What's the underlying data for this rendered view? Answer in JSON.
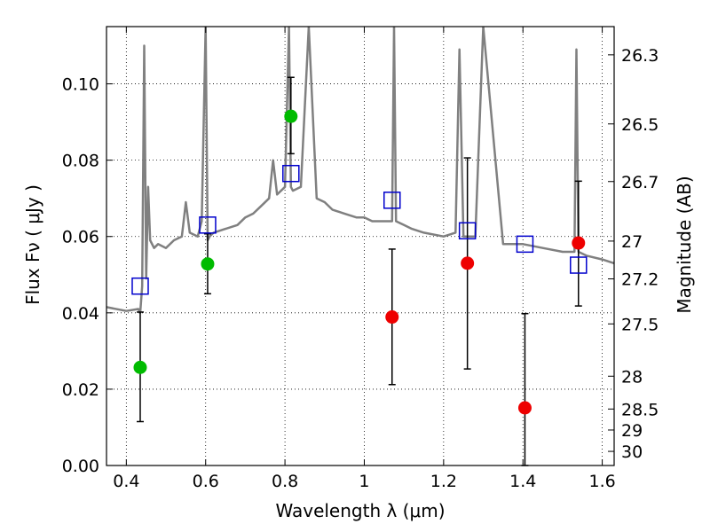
{
  "chart_data": {
    "type": "scatter",
    "xlabel": "Wavelength  λ (μm)",
    "ylabel": "Flux  Fν  ( μJy )",
    "ylabel_right": "Magnitude (AB)",
    "xlim": [
      0.35,
      1.63
    ],
    "ylim": [
      0.0,
      0.115
    ],
    "grid": true,
    "x_ticks": [
      0.4,
      0.6,
      0.8,
      1.0,
      1.2,
      1.4,
      1.6
    ],
    "x_tick_labels": [
      "0.4",
      "0.6",
      "0.8",
      "1",
      "1.2",
      "1.4",
      "1.6"
    ],
    "y_ticks": [
      0.0,
      0.02,
      0.04,
      0.06,
      0.08,
      0.1
    ],
    "y_tick_labels": [
      "0.00",
      "0.02",
      "0.04",
      "0.06",
      "0.08",
      "0.10"
    ],
    "mag_ticks": [
      {
        "label": "26.3",
        "flux": 0.1076
      },
      {
        "label": "26.5",
        "flux": 0.0895
      },
      {
        "label": "26.7",
        "flux": 0.0744
      },
      {
        "label": "27",
        "flux": 0.0588
      },
      {
        "label": "27.2",
        "flux": 0.0489
      },
      {
        "label": "27.5",
        "flux": 0.0371
      },
      {
        "label": "28",
        "flux": 0.0234
      },
      {
        "label": "28.5",
        "flux": 0.0148
      },
      {
        "label": "29",
        "flux": 0.0093
      },
      {
        "label": "30",
        "flux": 0.0037
      }
    ],
    "series": [
      {
        "name": "model spectrum",
        "kind": "line",
        "color": "#808080",
        "x": [
          0.35,
          0.4,
          0.43,
          0.435,
          0.44,
          0.445,
          0.45,
          0.455,
          0.46,
          0.47,
          0.48,
          0.5,
          0.52,
          0.54,
          0.55,
          0.56,
          0.58,
          0.59,
          0.6,
          0.605,
          0.61,
          0.62,
          0.65,
          0.68,
          0.7,
          0.72,
          0.74,
          0.76,
          0.77,
          0.78,
          0.8,
          0.81,
          0.815,
          0.82,
          0.84,
          0.86,
          0.88,
          0.9,
          0.92,
          0.95,
          0.98,
          1.0,
          1.02,
          1.04,
          1.06,
          1.07,
          1.075,
          1.08,
          1.1,
          1.12,
          1.15,
          1.2,
          1.23,
          1.24,
          1.25,
          1.28,
          1.3,
          1.35,
          1.4,
          1.45,
          1.5,
          1.53,
          1.535,
          1.54,
          1.56,
          1.6,
          1.63
        ],
        "y": [
          0.0415,
          0.0405,
          0.041,
          0.04,
          0.047,
          0.11,
          0.049,
          0.073,
          0.059,
          0.057,
          0.058,
          0.057,
          0.059,
          0.06,
          0.069,
          0.061,
          0.06,
          0.064,
          0.115,
          0.059,
          0.06,
          0.061,
          0.062,
          0.063,
          0.065,
          0.066,
          0.068,
          0.07,
          0.08,
          0.071,
          0.073,
          0.115,
          0.073,
          0.072,
          0.073,
          0.115,
          0.07,
          0.069,
          0.067,
          0.066,
          0.065,
          0.065,
          0.064,
          0.064,
          0.064,
          0.064,
          0.115,
          0.064,
          0.063,
          0.062,
          0.061,
          0.06,
          0.061,
          0.109,
          0.06,
          0.06,
          0.115,
          0.058,
          0.058,
          0.057,
          0.056,
          0.056,
          0.109,
          0.056,
          0.055,
          0.054,
          0.053
        ]
      },
      {
        "name": "model photometry",
        "kind": "open-square",
        "color": "#0000cc",
        "x": [
          0.435,
          0.605,
          0.815,
          1.07,
          1.26,
          1.405,
          1.54
        ],
        "y": [
          0.047,
          0.063,
          0.0765,
          0.0695,
          0.0615,
          0.058,
          0.0525
        ]
      },
      {
        "name": "observed (green)",
        "kind": "filled-circle",
        "color": "#00bb00",
        "x": [
          0.435,
          0.605,
          0.815
        ],
        "y": [
          0.0257,
          0.0528,
          0.0915
        ],
        "err_low": [
          0.0115,
          0.045,
          0.0817
        ],
        "err_high": [
          0.0402,
          0.0607,
          0.1017
        ]
      },
      {
        "name": "observed (red)",
        "kind": "filled-circle",
        "color": "#ee0000",
        "x": [
          1.07,
          1.26,
          1.405,
          1.54
        ],
        "y": [
          0.0389,
          0.053,
          0.0151,
          0.0583
        ],
        "err_low": [
          0.0212,
          0.0253,
          0.0,
          0.0418
        ],
        "err_high": [
          0.0567,
          0.0806,
          0.0398,
          0.0745
        ]
      }
    ]
  }
}
